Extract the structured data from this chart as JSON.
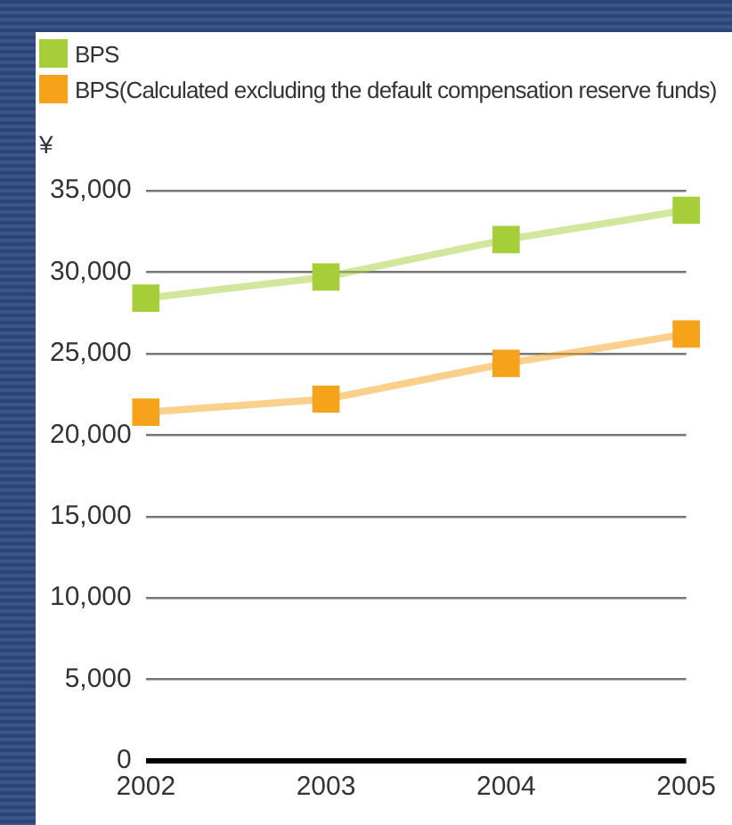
{
  "chart_data": {
    "type": "line",
    "ylabel": "¥",
    "categories": [
      "2002",
      "2003",
      "2004",
      "2005"
    ],
    "series": [
      {
        "name": "BPS",
        "color": "#a6ce39",
        "values": [
          28400,
          29700,
          32000,
          33800
        ]
      },
      {
        "name": "BPS(Calculated excluding the default compensation reserve funds)",
        "color": "#f7a21b",
        "values": [
          21400,
          22200,
          24400,
          26200
        ]
      }
    ],
    "ylim": [
      0,
      35000
    ],
    "yticks": [
      0,
      {
        "value": 5000,
        "label": "5,000"
      },
      {
        "value": 10000,
        "label": "10,000"
      },
      {
        "value": 15000,
        "label": "15,000"
      },
      {
        "value": 20000,
        "label": "20,000"
      },
      {
        "value": 25000,
        "label": "25,000"
      },
      {
        "value": 30000,
        "label": "30,000"
      },
      {
        "value": 35000,
        "label": "35,000"
      }
    ],
    "grid": "y",
    "legend": "top left",
    "marker": "square",
    "line_style": "solid"
  }
}
